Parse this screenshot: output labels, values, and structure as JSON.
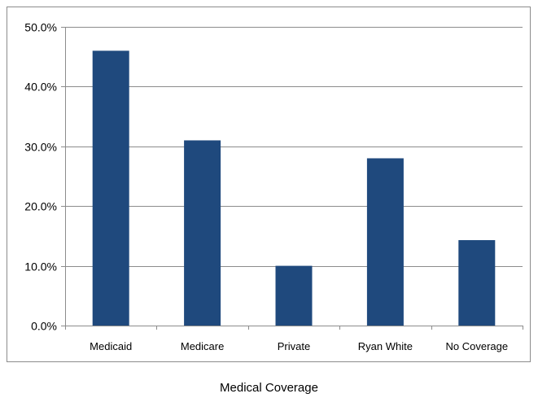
{
  "chart_data": {
    "type": "bar",
    "categories": [
      "Medicaid",
      "Medicare",
      "Private",
      "Ryan White",
      "No Coverage"
    ],
    "values": [
      46.0,
      31.0,
      10.0,
      28.0,
      14.3
    ],
    "title": "",
    "xlabel": "Medical Coverage",
    "ylabel": "",
    "ylim": [
      0,
      50
    ],
    "y_ticks": [
      0,
      10,
      20,
      30,
      40,
      50
    ],
    "y_tick_labels": [
      "0.0%",
      "10.0%",
      "20.0%",
      "30.0%",
      "40.0%",
      "50.0%"
    ],
    "grid": true,
    "legend": "none",
    "bar_color": "#1f497d"
  }
}
